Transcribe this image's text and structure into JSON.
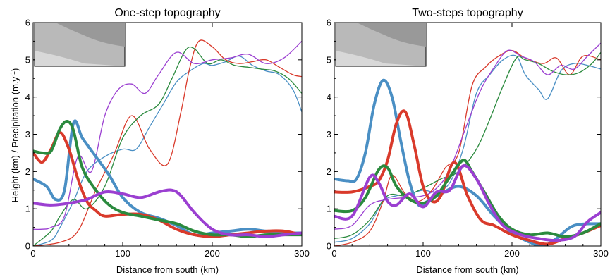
{
  "figure": {
    "ylabel_main": "Height (km) / Precipitation (m.y",
    "ylabel_sup": "-1",
    "ylabel_end": ")"
  },
  "chart_data": [
    {
      "type": "line",
      "title": "One-step topography",
      "xlabel": "Distance from south (km)",
      "ylabel": "Height (km) / Precipitation (m.y-1)",
      "xlim": [
        0,
        300
      ],
      "ylim": [
        0,
        6
      ],
      "xticks": [
        "0",
        "100",
        "200",
        "300"
      ],
      "yticks": [
        "0",
        "1",
        "2",
        "3",
        "4",
        "5",
        "6"
      ],
      "inset": {
        "type": "map",
        "marker_colors": [
          "#9b3fd1",
          "#d93a2b",
          "#2b8a3e",
          "#4a8fc4"
        ]
      },
      "series": [
        {
          "color": "#4a8fc4",
          "kind": "height",
          "x": [
            0,
            15,
            25,
            35,
            45,
            55,
            70,
            85,
            100,
            120,
            140,
            160,
            180,
            200,
            220,
            240,
            260,
            280,
            300
          ],
          "y": [
            1.8,
            1.6,
            1.25,
            1.5,
            3.3,
            2.9,
            2.4,
            1.9,
            1.3,
            0.9,
            0.75,
            0.55,
            0.3,
            0.35,
            0.4,
            0.45,
            0.4,
            0.35,
            0.35
          ]
        },
        {
          "color": "#d93a2b",
          "kind": "height",
          "x": [
            0,
            10,
            20,
            30,
            40,
            50,
            60,
            70,
            80,
            100,
            120,
            140,
            160,
            180,
            200,
            220,
            240,
            260,
            280,
            300
          ],
          "y": [
            2.5,
            2.25,
            2.6,
            3.05,
            2.6,
            1.8,
            1.2,
            0.95,
            0.8,
            0.85,
            0.85,
            0.7,
            0.45,
            0.3,
            0.25,
            0.3,
            0.35,
            0.4,
            0.4,
            0.3
          ]
        },
        {
          "color": "#2b8a3e",
          "kind": "height",
          "x": [
            0,
            10,
            20,
            30,
            38,
            45,
            55,
            70,
            85,
            100,
            120,
            140,
            160,
            180,
            200,
            220,
            240,
            260,
            280,
            300
          ],
          "y": [
            2.55,
            2.5,
            2.55,
            3.15,
            3.35,
            3.1,
            2.1,
            1.5,
            1.1,
            0.9,
            0.8,
            0.7,
            0.6,
            0.4,
            0.3,
            0.3,
            0.25,
            0.3,
            0.3,
            0.3
          ]
        },
        {
          "color": "#9b3fd1",
          "kind": "height",
          "x": [
            0,
            20,
            40,
            60,
            80,
            100,
            120,
            140,
            155,
            165,
            180,
            200,
            220,
            240,
            260,
            280,
            300
          ],
          "y": [
            1.15,
            1.1,
            1.15,
            1.25,
            1.45,
            1.4,
            1.3,
            1.45,
            1.5,
            1.35,
            0.9,
            0.45,
            0.3,
            0.3,
            0.25,
            0.3,
            0.35
          ]
        },
        {
          "color": "#4a8fc4",
          "kind": "precipitation",
          "x": [
            0,
            20,
            30,
            45,
            60,
            80,
            100,
            115,
            130,
            145,
            160,
            175,
            190,
            200,
            215,
            230,
            245,
            260,
            275,
            290,
            300
          ],
          "y": [
            0,
            0.15,
            0.5,
            1.2,
            2.0,
            2.4,
            2.6,
            2.6,
            3.2,
            3.8,
            4.4,
            4.7,
            4.9,
            4.85,
            4.95,
            5.1,
            4.85,
            4.7,
            4.6,
            4.2,
            3.6
          ]
        },
        {
          "color": "#d93a2b",
          "kind": "precipitation",
          "x": [
            0,
            30,
            50,
            70,
            90,
            110,
            130,
            150,
            165,
            175,
            185,
            200,
            215,
            230,
            245,
            260,
            275,
            290,
            300
          ],
          "y": [
            0,
            0.1,
            0.4,
            1.5,
            2.45,
            3.5,
            2.6,
            2.2,
            3.6,
            4.8,
            5.5,
            5.35,
            5.0,
            4.9,
            4.95,
            5.0,
            4.8,
            4.6,
            4.55
          ]
        },
        {
          "color": "#2b8a3e",
          "kind": "precipitation",
          "x": [
            0,
            20,
            30,
            45,
            60,
            80,
            100,
            120,
            140,
            155,
            170,
            180,
            195,
            210,
            225,
            240,
            255,
            270,
            285,
            300
          ],
          "y": [
            0,
            0.4,
            0.8,
            1.25,
            1.0,
            1.6,
            2.9,
            3.5,
            3.8,
            4.5,
            5.25,
            5.3,
            4.9,
            5.0,
            4.85,
            4.8,
            4.75,
            4.7,
            4.5,
            4.1
          ]
        },
        {
          "color": "#9b3fd1",
          "kind": "precipitation",
          "x": [
            0,
            10,
            20,
            35,
            50,
            65,
            80,
            95,
            110,
            125,
            140,
            160,
            180,
            200,
            220,
            240,
            260,
            280,
            300
          ],
          "y": [
            0.45,
            0.45,
            0.5,
            0.8,
            2.4,
            2.0,
            3.5,
            4.2,
            4.35,
            4.1,
            4.6,
            5.2,
            4.9,
            5.0,
            5.05,
            5.15,
            4.9,
            5.05,
            5.5
          ]
        }
      ]
    },
    {
      "type": "line",
      "title": "Two-steps topography",
      "xlabel": "Distance from south (km)",
      "ylabel": "",
      "xlim": [
        0,
        300
      ],
      "ylim": [
        0,
        6
      ],
      "xticks": [
        "0",
        "100",
        "200",
        "300"
      ],
      "yticks": [
        "0",
        "1",
        "2",
        "3",
        "4",
        "5",
        "6"
      ],
      "inset": {
        "type": "map",
        "marker_colors": [
          "#9b3fd1",
          "#d93a2b",
          "#2b8a3e",
          "#4a8fc4"
        ]
      },
      "series": [
        {
          "color": "#4a8fc4",
          "kind": "height",
          "x": [
            0,
            15,
            25,
            35,
            45,
            55,
            65,
            75,
            85,
            95,
            105,
            120,
            140,
            160,
            180,
            200,
            220,
            235,
            250,
            270,
            300
          ],
          "y": [
            1.8,
            1.75,
            1.8,
            2.5,
            3.8,
            4.45,
            4.0,
            2.8,
            1.7,
            1.1,
            1.2,
            1.4,
            1.6,
            1.35,
            0.8,
            0.35,
            0.1,
            0.0,
            0.2,
            0.55,
            0.6
          ]
        },
        {
          "color": "#d93a2b",
          "kind": "height",
          "x": [
            0,
            20,
            40,
            50,
            60,
            70,
            80,
            90,
            100,
            110,
            120,
            135,
            150,
            165,
            180,
            200,
            220,
            240,
            260,
            280,
            300
          ],
          "y": [
            1.45,
            1.45,
            1.6,
            1.75,
            2.3,
            3.3,
            3.6,
            2.7,
            1.6,
            1.2,
            1.35,
            2.25,
            1.35,
            0.7,
            0.55,
            0.3,
            0.15,
            0.05,
            0.2,
            0.35,
            0.55
          ]
        },
        {
          "color": "#2b8a3e",
          "kind": "height",
          "x": [
            0,
            20,
            35,
            50,
            60,
            70,
            85,
            100,
            115,
            130,
            145,
            155,
            170,
            185,
            200,
            220,
            240,
            260,
            280,
            300
          ],
          "y": [
            0.95,
            0.95,
            1.3,
            2.05,
            2.1,
            1.6,
            1.25,
            1.15,
            1.35,
            1.85,
            2.3,
            2.0,
            1.4,
            0.8,
            0.45,
            0.3,
            0.35,
            0.25,
            0.35,
            0.6
          ]
        },
        {
          "color": "#9b3fd1",
          "kind": "height",
          "x": [
            0,
            20,
            40,
            50,
            60,
            70,
            85,
            100,
            115,
            130,
            145,
            160,
            175,
            190,
            210,
            230,
            250,
            270,
            285,
            300
          ],
          "y": [
            0.8,
            0.8,
            1.85,
            1.7,
            1.2,
            1.1,
            1.4,
            1.05,
            1.45,
            1.5,
            2.15,
            1.8,
            1.1,
            0.55,
            0.3,
            0.2,
            0.15,
            0.25,
            0.65,
            0.9
          ]
        },
        {
          "color": "#4a8fc4",
          "kind": "precipitation",
          "x": [
            0,
            20,
            40,
            55,
            70,
            85,
            100,
            115,
            130,
            145,
            160,
            175,
            190,
            205,
            215,
            230,
            240,
            255,
            270,
            285,
            300
          ],
          "y": [
            0.1,
            0.2,
            0.6,
            1.2,
            1.35,
            1.4,
            1.5,
            1.45,
            1.7,
            2.6,
            4.1,
            4.6,
            5.0,
            5.1,
            4.6,
            4.2,
            3.95,
            4.7,
            4.9,
            4.85,
            4.75
          ]
        },
        {
          "color": "#d93a2b",
          "kind": "precipitation",
          "x": [
            0,
            20,
            40,
            55,
            65,
            80,
            95,
            110,
            125,
            140,
            155,
            170,
            185,
            200,
            215,
            235,
            250,
            265,
            280,
            300
          ],
          "y": [
            0,
            0.1,
            0.4,
            1.2,
            1.9,
            1.4,
            1.2,
            1.5,
            2.1,
            2.5,
            4.3,
            4.8,
            5.1,
            5.25,
            5.05,
            4.9,
            5.05,
            4.6,
            5.1,
            5.0
          ]
        },
        {
          "color": "#2b8a3e",
          "kind": "precipitation",
          "x": [
            0,
            20,
            40,
            60,
            80,
            100,
            120,
            140,
            160,
            175,
            190,
            205,
            215,
            230,
            245,
            260,
            275,
            290,
            300
          ],
          "y": [
            0.2,
            0.3,
            0.7,
            1.35,
            1.35,
            1.55,
            1.8,
            2.0,
            2.6,
            3.4,
            4.3,
            5.05,
            5.0,
            4.9,
            4.7,
            4.6,
            4.65,
            4.9,
            5.2
          ]
        },
        {
          "color": "#9b3fd1",
          "kind": "precipitation",
          "x": [
            0,
            20,
            40,
            60,
            80,
            100,
            115,
            130,
            150,
            165,
            180,
            195,
            210,
            225,
            240,
            255,
            270,
            285,
            300
          ],
          "y": [
            0.45,
            0.55,
            1.1,
            1.25,
            1.3,
            1.35,
            1.55,
            2.05,
            3.3,
            4.2,
            4.8,
            5.25,
            5.1,
            4.95,
            4.6,
            4.85,
            4.75,
            5.1,
            5.45
          ]
        }
      ]
    }
  ]
}
